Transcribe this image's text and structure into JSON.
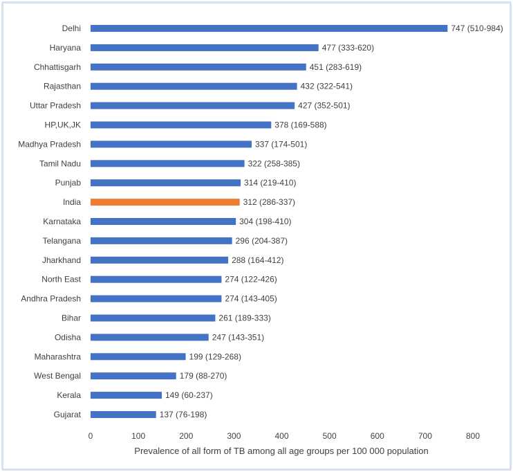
{
  "chart_data": {
    "type": "bar",
    "orientation": "horizontal",
    "title": "",
    "xlabel": "Prevalence of all form of TB among all age groups per 100 000 population",
    "ylabel": "",
    "xlim": [
      0,
      800
    ],
    "xticks": [
      0,
      100,
      200,
      300,
      400,
      500,
      600,
      700,
      800
    ],
    "grid": false,
    "legend": "none",
    "bar_color": "#4472c4",
    "highlight_color": "#ed7d31",
    "highlight_category": "India",
    "categories": [
      "Delhi",
      "Haryana",
      "Chhattisgarh",
      "Rajasthan",
      "Uttar Pradesh",
      "HP,UK,JK",
      "Madhya Pradesh",
      "Tamil Nadu",
      "Punjab",
      "India",
      "Karnataka",
      "Telangana",
      "Jharkhand",
      "North East",
      "Andhra Pradesh",
      "Bihar",
      "Odisha",
      "Maharashtra",
      "West Bengal",
      "Kerala",
      "Gujarat"
    ],
    "values": [
      747,
      477,
      451,
      432,
      427,
      378,
      337,
      322,
      314,
      312,
      304,
      296,
      288,
      274,
      274,
      261,
      247,
      199,
      179,
      149,
      137
    ],
    "labels": [
      "747 (510-984)",
      "477 (333-620)",
      "451 (283-619)",
      "432 (322-541)",
      "427 (352-501)",
      "378 (169-588)",
      "337 (174-501)",
      "322 (258-385)",
      "314 (219-410)",
      "312 (286-337)",
      "304 (198-410)",
      "296 (204-387)",
      "288 (164-412)",
      "274 (122-426)",
      "274 (143-405)",
      "261 (189-333)",
      "247 (143-351)",
      "199 (129-268)",
      "179 (88-270)",
      "149 (60-237)",
      "137 (76-198)"
    ]
  }
}
